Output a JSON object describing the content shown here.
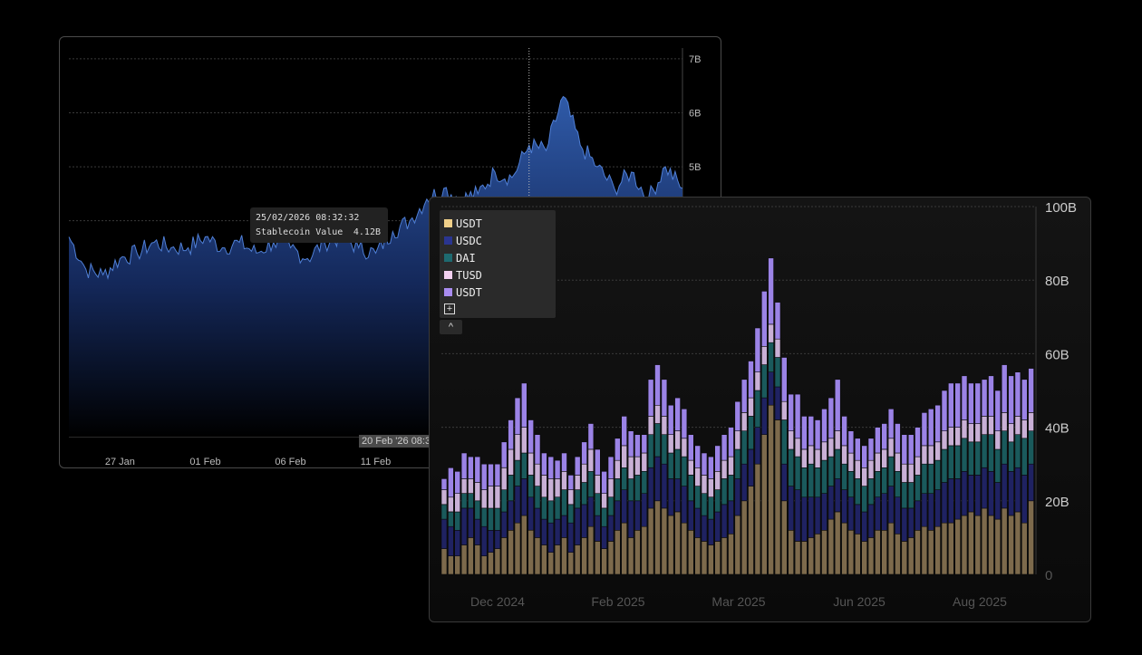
{
  "chart_data": [
    {
      "type": "area",
      "title": "",
      "xlabel": "",
      "ylabel": "",
      "x_ticks": [
        "27 Jan",
        "01 Feb",
        "06 Feb",
        "11 Feb"
      ],
      "y_ticks": [
        "7B",
        "6B",
        "5B"
      ],
      "ylim": [
        0,
        7.2
      ],
      "x_range": [
        "2026-01-24",
        "2026-03-01"
      ],
      "grid": true,
      "y_axis_position": "right",
      "accent_color": "#2f5aa8",
      "series": [
        {
          "x": [
            "2026-01-24",
            "2026-01-25",
            "2026-01-26",
            "2026-01-27",
            "2026-01-28",
            "2026-01-29",
            "2026-01-30",
            "2026-01-31",
            "2026-02-01",
            "2026-02-02",
            "2026-02-03",
            "2026-02-04",
            "2026-02-05",
            "2026-02-06",
            "2026-02-07",
            "2026-02-08",
            "2026-02-09",
            "2026-02-10",
            "2026-02-11",
            "2026-02-12",
            "2026-02-13",
            "2026-02-14",
            "2026-02-15",
            "2026-02-16",
            "2026-02-17",
            "2026-02-18",
            "2026-02-19",
            "2026-02-20",
            "2026-02-21",
            "2026-02-22",
            "2026-02-23",
            "2026-02-24",
            "2026-02-25",
            "2026-02-26",
            "2026-02-27",
            "2026-02-28",
            "2026-03-01"
          ],
          "values": [
            3.7,
            3.1,
            3.0,
            3.3,
            3.4,
            3.6,
            3.5,
            3.5,
            3.7,
            3.5,
            3.6,
            3.4,
            3.6,
            3.5,
            3.3,
            3.6,
            3.7,
            3.5,
            3.4,
            3.8,
            4.0,
            4.4,
            4.6,
            4.4,
            4.5,
            4.9,
            4.8,
            5.4,
            5.3,
            6.3,
            5.4,
            5.0,
            4.6,
            4.9,
            4.4,
            5.0,
            4.6
          ]
        }
      ],
      "tooltip": {
        "time": "25/02/2026 08:32:32",
        "label": "Stablecoin Value",
        "value": "4.12B"
      },
      "crosshair_label": "20 Feb '26 08:3"
    },
    {
      "type": "bar",
      "stacked": true,
      "title": "",
      "xlabel": "",
      "ylabel": "",
      "x_ticks": [
        "Dec 2024",
        "Feb 2025",
        "Mar 2025",
        "Jun 2025",
        "Aug 2025"
      ],
      "y_ticks": [
        "100B",
        "80B",
        "60B",
        "40B",
        "20B",
        "0"
      ],
      "ylim": [
        0,
        100
      ],
      "grid": true,
      "y_axis_position": "right",
      "legend_position": "top-left",
      "series": [
        {
          "name": "USDT",
          "color": "#7d6a4c",
          "values": [
            7,
            5,
            5,
            8,
            10,
            8,
            5,
            6,
            7,
            10,
            12,
            14,
            16,
            12,
            10,
            8,
            6,
            8,
            10,
            6,
            8,
            10,
            13,
            9,
            7,
            9,
            12,
            14,
            10,
            12,
            13,
            18,
            20,
            18,
            16,
            17,
            14,
            12,
            10,
            9,
            8,
            9,
            10,
            11,
            16,
            20,
            24,
            30,
            38,
            46,
            42,
            20,
            12,
            9,
            9,
            10,
            11,
            12,
            15,
            17,
            14,
            12,
            11,
            9,
            10,
            12,
            12,
            14,
            11,
            9,
            10,
            12,
            13,
            12,
            13,
            14,
            14,
            15,
            16,
            17,
            16,
            18,
            16,
            15,
            18,
            16,
            17,
            14,
            20
          ]
        },
        {
          "name": "USDC",
          "color": "#1f2262",
          "values": [
            8,
            8,
            7,
            10,
            8,
            7,
            8,
            6,
            5,
            7,
            8,
            10,
            10,
            9,
            8,
            7,
            8,
            7,
            6,
            8,
            10,
            9,
            8,
            7,
            6,
            7,
            8,
            9,
            10,
            8,
            9,
            11,
            12,
            12,
            10,
            9,
            10,
            8,
            8,
            7,
            7,
            8,
            9,
            9,
            10,
            10,
            10,
            10,
            10,
            9,
            9,
            10,
            12,
            14,
            12,
            11,
            10,
            10,
            9,
            9,
            9,
            9,
            8,
            8,
            9,
            9,
            10,
            10,
            10,
            9,
            8,
            8,
            9,
            10,
            10,
            11,
            12,
            11,
            12,
            10,
            11,
            11,
            12,
            10,
            12,
            12,
            12,
            13,
            10
          ]
        },
        {
          "name": "DAI",
          "color": "#1a5a5c",
          "values": [
            4,
            4,
            5,
            4,
            4,
            5,
            5,
            6,
            6,
            6,
            7,
            7,
            7,
            6,
            6,
            6,
            6,
            6,
            7,
            5,
            5,
            6,
            7,
            6,
            5,
            5,
            6,
            6,
            6,
            7,
            6,
            9,
            9,
            8,
            7,
            8,
            8,
            7,
            6,
            6,
            6,
            6,
            7,
            7,
            8,
            9,
            9,
            10,
            9,
            8,
            8,
            12,
            10,
            9,
            8,
            9,
            8,
            9,
            8,
            8,
            7,
            7,
            7,
            7,
            7,
            7,
            7,
            8,
            7,
            7,
            7,
            7,
            8,
            8,
            8,
            9,
            9,
            9,
            9,
            9,
            9,
            9,
            10,
            9,
            9,
            8,
            9,
            10,
            9
          ]
        },
        {
          "name": "TUSD",
          "color": "#c9b0d6",
          "values": [
            4,
            4,
            5,
            4,
            4,
            5,
            5,
            6,
            6,
            6,
            7,
            7,
            7,
            6,
            6,
            6,
            6,
            5,
            5,
            4,
            4,
            5,
            6,
            5,
            4,
            5,
            5,
            6,
            6,
            5,
            5,
            5,
            5,
            5,
            5,
            5,
            5,
            4,
            5,
            5,
            5,
            5,
            5,
            5,
            5,
            5,
            5,
            5,
            5,
            5,
            5,
            5,
            5,
            5,
            5,
            5,
            5,
            5,
            5,
            5,
            5,
            5,
            5,
            5,
            5,
            5,
            5,
            5,
            5,
            5,
            5,
            5,
            5,
            5,
            5,
            5,
            5,
            5,
            5,
            5,
            5,
            5,
            5,
            5,
            5,
            5,
            5,
            5,
            5
          ]
        },
        {
          "name": "USDT",
          "color": "#9b83e6",
          "values": [
            3,
            8,
            6,
            7,
            6,
            7,
            7,
            6,
            6,
            7,
            8,
            10,
            12,
            9,
            8,
            6,
            6,
            5,
            5,
            4,
            5,
            6,
            7,
            7,
            6,
            6,
            6,
            8,
            7,
            6,
            5,
            10,
            11,
            10,
            8,
            9,
            8,
            7,
            6,
            6,
            6,
            7,
            7,
            8,
            8,
            9,
            10,
            12,
            15,
            18,
            10,
            12,
            10,
            12,
            9,
            8,
            8,
            9,
            11,
            14,
            8,
            6,
            6,
            6,
            6,
            7,
            7,
            8,
            8,
            8,
            8,
            8,
            9,
            10,
            10,
            11,
            12,
            12,
            12,
            11,
            11,
            10,
            11,
            11,
            13,
            13,
            12,
            11,
            12
          ]
        }
      ]
    }
  ],
  "legend": {
    "add_label": "+",
    "collapse_label": "^"
  }
}
